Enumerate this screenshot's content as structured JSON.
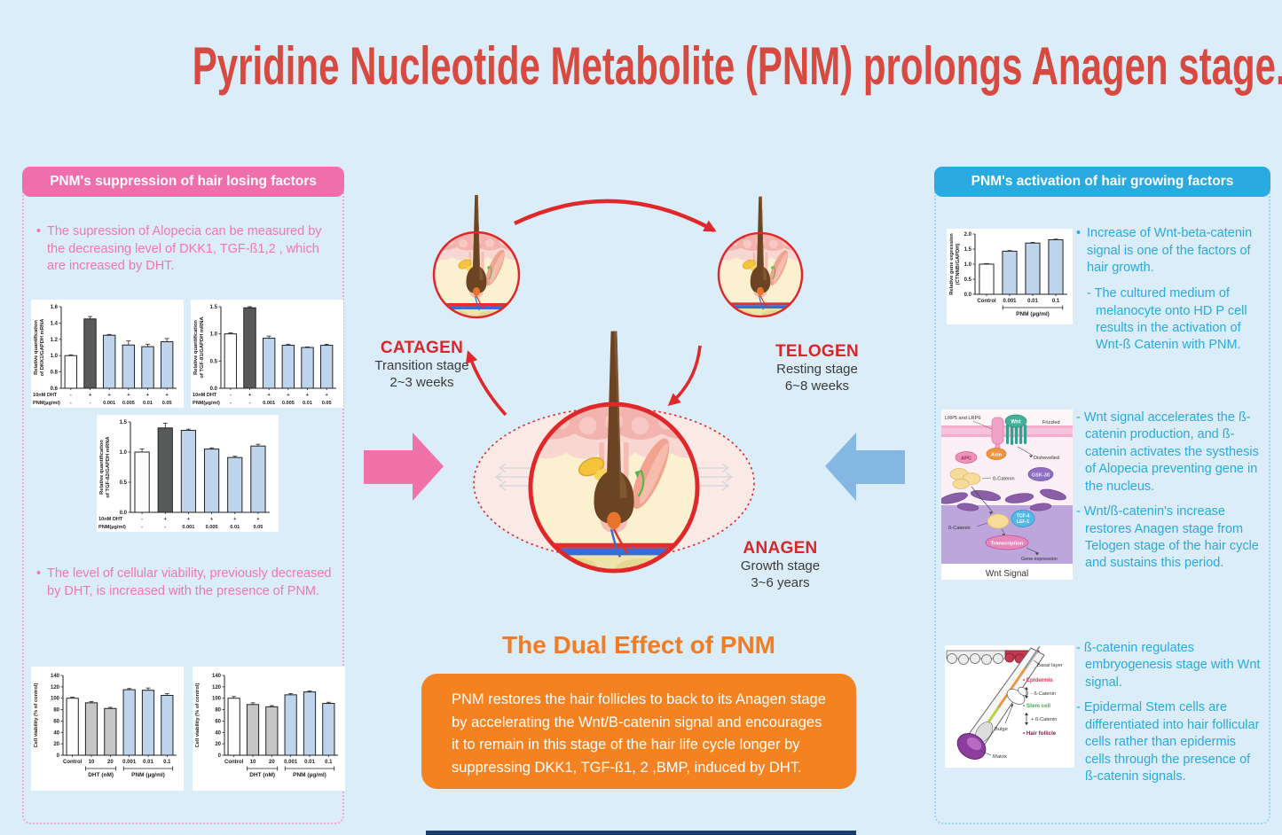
{
  "page": {
    "title": "Pyridine Nucleotide Metabolite (PNM) prolongs Anagen stage."
  },
  "colors": {
    "background": "#DBEDF8",
    "title_red": "#D84A3F",
    "pink_accent": "#F06EAC",
    "blue_accent": "#29ABE2",
    "orange_accent": "#F58220",
    "cycle_red": "#D9262B",
    "bar_blue": "#BDD4EC",
    "bar_gray": "#C7C6C5",
    "bar_dark": "#58595B",
    "footer_navy": "#1B3C6D"
  },
  "left_panel": {
    "header": "PNM's suppression of hair losing factors",
    "bullet1": "The supression of Alopecia can be measured by the decreasing level of DKK1, TGF-ß1,2 , which are increased by DHT.",
    "bullet2": "The level of cellular viability, previously decreased by DHT, is increased with the presence of PNM."
  },
  "right_panel": {
    "header": "PNM's activation of hair growing factors",
    "bullet1": "Increase of Wnt-beta-catenin signal is one of the factors of hair growth.",
    "bullet1_sub": "- The cultured medium of melanocyte onto HD P cell results in the activation of Wnt-ß Catenin with PNM.",
    "bullet2": "- Wnt signal accelerates the ß-catenin production, and ß-catenin activates the systhesis of Alopecia preventing gene in the nucleus.",
    "bullet3": "- Wnt/ß-catenin's increase restores Anagen stage from Telogen stage of the hair cycle and sustains this period.",
    "bullet4": "- ß-catenin regulates embryogenesis stage with Wnt signal.",
    "bullet5": "- Epidermal Stem cells are differentiated into hair follicular cells rather than epidermis cells through the presence of ß-catenin signals."
  },
  "cycle": {
    "catagen_label": "CATAGEN",
    "catagen_sub1": "Transition stage",
    "catagen_sub2": "2~3 weeks",
    "telogen_label": "TELOGEN",
    "telogen_sub1": "Resting stage",
    "telogen_sub2": "6~8 weeks",
    "anagen_label": "ANAGEN",
    "anagen_sub1": "Growth stage",
    "anagen_sub2": "3~6 years"
  },
  "dual_effect": {
    "heading": "The Dual Effect of PNM",
    "body": "PNM restores the hair follicles to back to its Anagen stage by accelerating the Wnt/B-catenin signal and encourages it to remain in this stage of the hair life cycle longer by suppressing DKK1, TGF-ß1, 2 ,BMP, induced by DHT."
  },
  "wnt_diagram": {
    "lrp": "LRP5 and LRP6",
    "wnt": "Wnt",
    "frizzled": "Frizzled",
    "apc": "APC",
    "axin": "Axin",
    "dishevelled": "Dishevelled",
    "gsk": "GSK-3ß",
    "bcatenin1": "ß-Catenin",
    "tcf": "TCF-4",
    "lef": "LEF-1",
    "bcatenin2": "ß-Catenin",
    "transcription": "Transcription",
    "gene_expression": "Gene expression",
    "caption": "Wnt Signal"
  },
  "follicle_diagram": {
    "basal_layer": "Basal layer",
    "epidermis": "• Epidermis",
    "minus_bcatenin": "- ß-Catenin",
    "stem_cell": "• Stem cell",
    "plus_bcatenin": "+ ß-Catenin",
    "hair_follicle": "• Hair follicle",
    "bulge": "Bulge",
    "matrix": "Matrix"
  },
  "chart_data": [
    {
      "type": "bar",
      "ylabel_lines": [
        "Relative quantification",
        "of DKK1/GAPDH mRNA"
      ],
      "ylim": [
        0.6,
        1.6
      ],
      "yticks": [
        0.6,
        0.8,
        1.0,
        1.2,
        1.4,
        1.6
      ],
      "values": [
        1.0,
        1.45,
        1.25,
        1.13,
        1.11,
        1.17
      ],
      "errors": [
        0.01,
        0.03,
        0.01,
        0.05,
        0.03,
        0.04
      ],
      "colors": [
        "white",
        "dark",
        "blue",
        "blue",
        "blue",
        "blue"
      ],
      "label_rows": [
        {
          "label": "10nM DHT",
          "values": [
            "-",
            "+",
            "+",
            "+",
            "+",
            "+"
          ]
        },
        {
          "label": "PNM(µg/ml)",
          "values": [
            "-",
            "-",
            "0.001",
            "0.005",
            "0.01",
            "0.05"
          ]
        }
      ]
    },
    {
      "type": "bar",
      "ylabel_lines": [
        "Relative quantification",
        "of TGF-ß1/GAPDH mRNA"
      ],
      "ylim": [
        0.0,
        1.5
      ],
      "yticks": [
        0.0,
        0.5,
        1.0,
        1.5
      ],
      "values": [
        1.0,
        1.48,
        0.92,
        0.79,
        0.75,
        0.79
      ],
      "errors": [
        0.02,
        0.02,
        0.04,
        0.02,
        0.01,
        0.02
      ],
      "colors": [
        "white",
        "dark",
        "blue",
        "blue",
        "blue",
        "blue"
      ],
      "label_rows": [
        {
          "label": "10nM DHT",
          "values": [
            "-",
            "+",
            "+",
            "+",
            "+",
            "+"
          ]
        },
        {
          "label": "PNM(µg/ml)",
          "values": [
            "-",
            "-",
            "0.001",
            "0.005",
            "0.01",
            "0.05"
          ]
        }
      ]
    },
    {
      "type": "bar",
      "ylabel_lines": [
        "Relative quantification",
        "of TGF-ß2/GAPDH mRNA"
      ],
      "ylim": [
        0.0,
        1.5
      ],
      "yticks": [
        0.0,
        0.5,
        1.0,
        1.5
      ],
      "values": [
        1.0,
        1.4,
        1.36,
        1.05,
        0.91,
        1.1
      ],
      "errors": [
        0.05,
        0.08,
        0.02,
        0.02,
        0.02,
        0.03
      ],
      "colors": [
        "white",
        "dark",
        "blue",
        "blue",
        "blue",
        "blue"
      ],
      "label_rows": [
        {
          "label": "10nM DHT",
          "values": [
            "-",
            "+",
            "+",
            "+",
            "+",
            "+"
          ]
        },
        {
          "label": "PNM(µg/ml)",
          "values": [
            "-",
            "-",
            "0.001",
            "0.005",
            "0.01",
            "0.05"
          ]
        }
      ]
    },
    {
      "type": "bar",
      "ylabel_lines": [
        "Cell viability (% of control)"
      ],
      "ylim": [
        0,
        140
      ],
      "yticks": [
        0,
        20,
        40,
        60,
        80,
        100,
        120,
        140
      ],
      "categories": [
        "Control",
        "10",
        "20",
        "0.001",
        "0.01",
        "0.1"
      ],
      "values": [
        100,
        92,
        82,
        115,
        114,
        105
      ],
      "errors": [
        2,
        2,
        2,
        2,
        4,
        3
      ],
      "colors": [
        "white",
        "gray",
        "gray",
        "blue",
        "blue",
        "blue"
      ],
      "groups": [
        {
          "label": "DHT (nM)",
          "from": 1,
          "to": 2
        },
        {
          "label": "PNM (µg/ml)",
          "from": 3,
          "to": 5
        }
      ]
    },
    {
      "type": "bar",
      "ylabel_lines": [
        "Cell viability (% of control)"
      ],
      "ylim": [
        0,
        140
      ],
      "yticks": [
        0,
        20,
        40,
        60,
        80,
        100,
        120,
        140
      ],
      "categories": [
        "Control",
        "10",
        "20",
        "0.001",
        "0.01",
        "0.1"
      ],
      "values": [
        100,
        89,
        85,
        106,
        111,
        91
      ],
      "errors": [
        3,
        3,
        2,
        2,
        2,
        2
      ],
      "colors": [
        "white",
        "gray",
        "gray",
        "blue",
        "blue",
        "blue"
      ],
      "groups": [
        {
          "label": "DHT (nM)",
          "from": 1,
          "to": 2
        },
        {
          "label": "PNM (µg/ml)",
          "from": 3,
          "to": 5
        }
      ]
    },
    {
      "type": "bar",
      "ylabel_lines": [
        "Relative gene expression",
        "(CTNNB/GAPDH)"
      ],
      "ylim": [
        0.0,
        2.0
      ],
      "yticks": [
        0.0,
        0.5,
        1.0,
        1.5,
        2.0
      ],
      "categories": [
        "Control",
        "0.001",
        "0.01",
        "0.1"
      ],
      "values": [
        1.0,
        1.43,
        1.7,
        1.81
      ],
      "errors": [
        0.02,
        0.02,
        0.02,
        0.02
      ],
      "colors": [
        "white",
        "blue",
        "blue",
        "blue"
      ],
      "groups": [
        {
          "label": "PNM (µg/ml)",
          "from": 1,
          "to": 3
        }
      ]
    }
  ]
}
